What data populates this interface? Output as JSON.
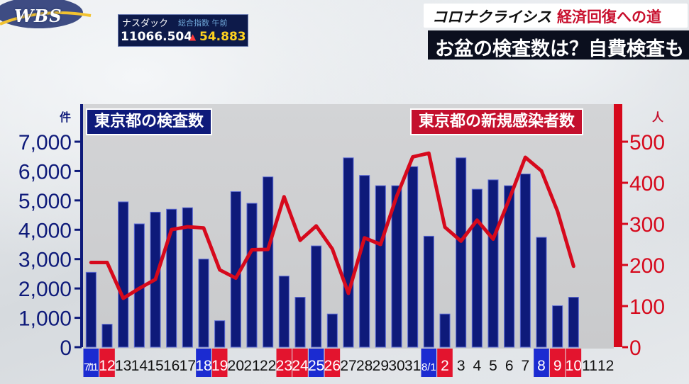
{
  "broadcaster": {
    "logo": "WBS"
  },
  "ticker": {
    "name": "ナスダック",
    "extra": "総合指数 午前",
    "value": "11066.504",
    "arrow": "▲",
    "change": "54.883"
  },
  "series_title": {
    "part1": "コロナクライシス",
    "part2": "経済回復への道"
  },
  "headline": "お盆の検査数は？自費検査も",
  "colors": {
    "bar": "#0e1a7a",
    "line": "#d6091c",
    "weekend_blue": "#1b2bd1",
    "weekend_red": "#e3142e"
  },
  "chart_data": {
    "type": "bar",
    "legend_left": "東京都の検査数",
    "legend_right": "東京都の新規感染者数",
    "ylabel_left": "件",
    "ylabel_right": "人",
    "ylim_left": [
      0,
      7000
    ],
    "ylim_right": [
      0,
      500
    ],
    "yticks_left": [
      "0",
      "1,000",
      "2,000",
      "3,000",
      "4,000",
      "5,000",
      "6,000",
      "7,000"
    ],
    "yticks_right": [
      "0",
      "100",
      "200",
      "300",
      "400",
      "500"
    ],
    "categories": [
      "7/11",
      "12",
      "13",
      "14",
      "15",
      "16",
      "17",
      "18",
      "19",
      "20",
      "21",
      "22",
      "23",
      "24",
      "25",
      "26",
      "27",
      "28",
      "29",
      "30",
      "31",
      "8/1",
      "2",
      "3",
      "4",
      "5",
      "6",
      "7",
      "8",
      "9",
      "10",
      "11",
      "12"
    ],
    "category_highlight": [
      "blue",
      "red",
      "",
      "",
      "",
      "",
      "",
      "blue",
      "red",
      "",
      "",
      "",
      "red",
      "red",
      "blue",
      "red",
      "",
      "",
      "",
      "",
      "",
      "blue",
      "red",
      "",
      "",
      "",
      "",
      "",
      "blue",
      "red",
      "red",
      "",
      ""
    ],
    "series": [
      {
        "name": "東京都の検査数",
        "type": "bar",
        "axis": "left",
        "values": [
          2550,
          780,
          4950,
          4200,
          4600,
          4700,
          4750,
          3000,
          900,
          5300,
          4900,
          5800,
          2420,
          1700,
          3450,
          1130,
          6450,
          5850,
          5500,
          5500,
          6150,
          3780,
          1130,
          6450,
          5380,
          5700,
          5500,
          5900,
          3740,
          1410,
          1700,
          null,
          null
        ]
      },
      {
        "name": "東京都の新規感染者数",
        "type": "line",
        "axis": "right",
        "values": [
          206,
          206,
          119,
          143,
          165,
          286,
          293,
          290,
          188,
          168,
          237,
          238,
          366,
          260,
          295,
          239,
          131,
          266,
          250,
          367,
          463,
          472,
          292,
          258,
          309,
          263,
          360,
          462,
          429,
          331,
          197,
          null,
          null
        ]
      }
    ]
  }
}
